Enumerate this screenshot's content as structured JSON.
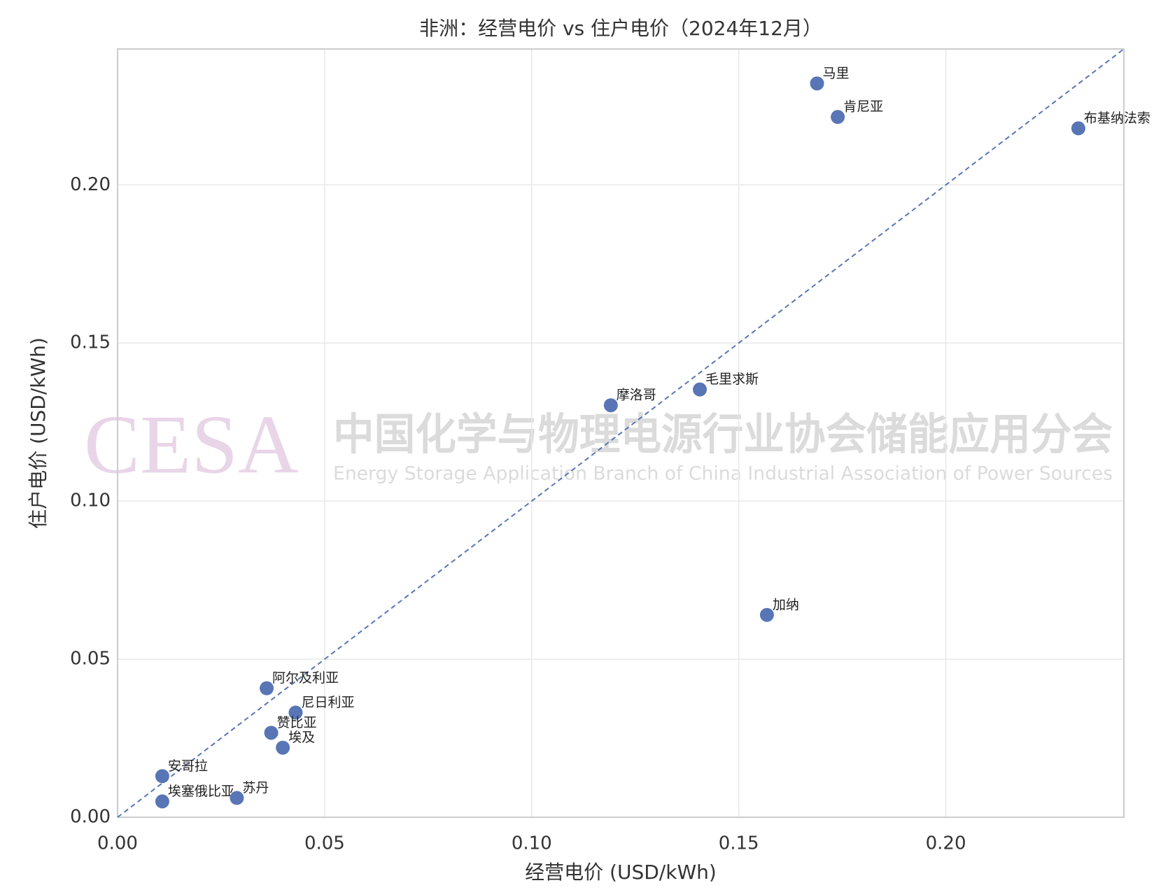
{
  "chart_data": {
    "type": "scatter",
    "title": "非洲：经营电价 vs 住户电价（2024年12月）",
    "x_label": "经营电价 (USD/kWh)",
    "y_label": "住户电价 (USD/kWh)",
    "labels": [
      "马里",
      "肯尼亚",
      "布基纳法索",
      "摩洛哥",
      "毛里求斯",
      "加纳",
      "阿尔及利亚",
      "尼日利亚",
      "赞比亚",
      "埃及",
      "安哥拉",
      "埃塞俄比亚",
      "苏丹"
    ],
    "x": [
      0.1689,
      0.1739,
      0.232,
      0.1191,
      0.1406,
      0.1568,
      0.036,
      0.043,
      0.0371,
      0.0399,
      0.0108,
      0.0108,
      0.0288
    ],
    "values": [
      0.2321,
      0.2215,
      0.2179,
      0.1303,
      0.1353,
      0.064,
      0.0408,
      0.0331,
      0.0267,
      0.022,
      0.013,
      0.005,
      0.0061
    ],
    "color": "#5876b5",
    "xlim": [
      0,
      0.243
    ],
    "ylim": [
      0,
      0.243
    ],
    "xticks": [
      {
        "value": 0,
        "label": "0.00"
      },
      {
        "value": 0.05,
        "label": "0.05"
      },
      {
        "value": 0.1,
        "label": "0.10"
      },
      {
        "value": 0.15,
        "label": "0.15"
      },
      {
        "value": 0.2,
        "label": "0.20"
      }
    ],
    "yticks": [
      {
        "value": 0,
        "label": "0.00"
      },
      {
        "value": 0.05,
        "label": "0.05"
      },
      {
        "value": 0.1,
        "label": "0.10"
      },
      {
        "value": 0.15,
        "label": "0.15"
      },
      {
        "value": 0.2,
        "label": "0.20"
      }
    ],
    "grid": true,
    "watermark": {
      "logo": "CESA",
      "title": "中国化学与物理电源行业协会储能应用分会",
      "subtitle": "Energy Storage Application Branch of China Industrial Association of Power Sources"
    }
  }
}
